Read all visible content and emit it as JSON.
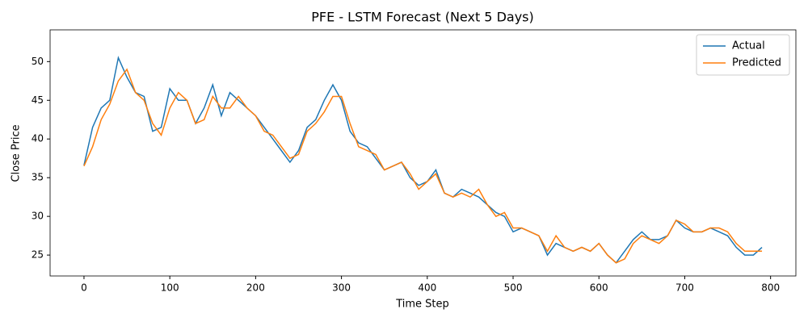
{
  "chart_data": {
    "type": "line",
    "title": "PFE - LSTM Forecast (Next 5 Days)",
    "x_label": "Time Step",
    "y_label": "Close Price",
    "x": [
      0,
      10,
      20,
      30,
      40,
      50,
      60,
      70,
      80,
      90,
      100,
      110,
      120,
      130,
      140,
      150,
      160,
      170,
      180,
      190,
      200,
      210,
      220,
      230,
      240,
      250,
      260,
      270,
      280,
      290,
      300,
      310,
      320,
      330,
      340,
      350,
      360,
      370,
      380,
      390,
      400,
      410,
      420,
      430,
      440,
      450,
      460,
      470,
      480,
      490,
      500,
      510,
      520,
      530,
      540,
      550,
      560,
      570,
      580,
      590,
      600,
      610,
      620,
      630,
      640,
      650,
      660,
      670,
      680,
      690,
      700,
      710,
      720,
      730,
      740,
      750,
      760,
      770,
      780,
      790
    ],
    "series": [
      {
        "name": "Actual",
        "color": "#1f77b4",
        "values": [
          36.6,
          41.5,
          44,
          45,
          50.5,
          48,
          46,
          45.5,
          41,
          41.5,
          46.5,
          45,
          45,
          42,
          44,
          47,
          43,
          46,
          45,
          44,
          43,
          41.5,
          40,
          38.5,
          37,
          38.5,
          41.5,
          42.5,
          45,
          47,
          45,
          41,
          39.5,
          39,
          37.5,
          36,
          36.5,
          37,
          35,
          34,
          34.5,
          36,
          33,
          32.5,
          33.5,
          33,
          32.5,
          31.5,
          30.5,
          30,
          28,
          28.5,
          28,
          27.5,
          25,
          26.5,
          26,
          25.5,
          26,
          25.5,
          26.5,
          25,
          24,
          25.5,
          27,
          28,
          27,
          27,
          27.5,
          29.5,
          28.5,
          28,
          28,
          28.5,
          28,
          27.5,
          26,
          25,
          25,
          26
        ]
      },
      {
        "name": "Predicted",
        "color": "#ff7f0e",
        "values": [
          36.5,
          39,
          42.5,
          44.5,
          47.5,
          49,
          46,
          45,
          42,
          40.5,
          44,
          46,
          45,
          42,
          42.5,
          45.5,
          44,
          44,
          45.5,
          44,
          43,
          41,
          40.5,
          39,
          37.5,
          38,
          41,
          42,
          43.5,
          45.5,
          45.5,
          42,
          39,
          38.5,
          38,
          36,
          36.5,
          37,
          35.5,
          33.5,
          34.5,
          35.5,
          33,
          32.5,
          33,
          32.5,
          33.5,
          31.5,
          30,
          30.5,
          28.5,
          28.5,
          28,
          27.5,
          25.5,
          27.5,
          26,
          25.5,
          26,
          25.5,
          26.5,
          25,
          24,
          24.5,
          26.5,
          27.5,
          27,
          26.5,
          27.5,
          29.5,
          29,
          28,
          28,
          28.5,
          28.5,
          28,
          26.5,
          25.5,
          25.5,
          25.5
        ]
      }
    ],
    "xlim": [
      -39.5,
      829.5
    ],
    "ylim": [
      22.3,
      54.1
    ],
    "xticks": [
      0,
      100,
      200,
      300,
      400,
      500,
      600,
      700,
      800
    ],
    "yticks": [
      25,
      30,
      35,
      40,
      45,
      50
    ],
    "legend": "upper right"
  }
}
